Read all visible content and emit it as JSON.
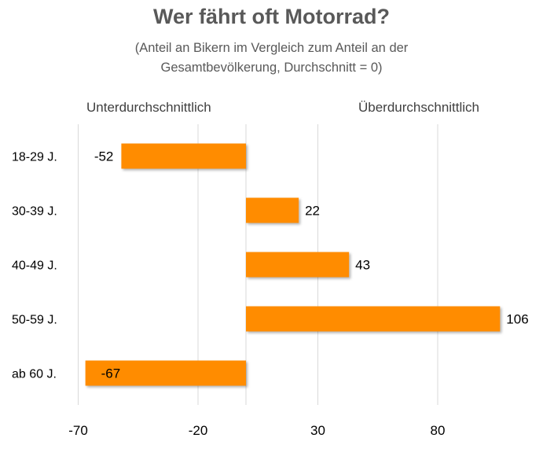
{
  "chart_data": {
    "type": "bar",
    "orientation": "horizontal",
    "title": "Wer fährt oft Motorrad?",
    "subtitle_lines": [
      "(Anteil an Bikern im Vergleich zum Anteil an der",
      "Gesamtbevölkerung, Durchschnitt = 0)"
    ],
    "side_labels": {
      "below": "Unterdurchschnittlich",
      "above": "Überdurchschnittlich"
    },
    "categories": [
      "18-29 J.",
      "30-39 J.",
      "40-49 J.",
      "50-59 J.",
      "ab 60 J."
    ],
    "values": [
      -52,
      22,
      43,
      106,
      -67
    ],
    "value_labels": [
      "-52",
      "22",
      "43",
      "106",
      "-67"
    ],
    "x_ticks": [
      -70,
      -20,
      30,
      80
    ],
    "x_tick_labels": [
      "-70",
      "-20",
      "30",
      "80"
    ],
    "xlim": [
      -70,
      110
    ],
    "grid": "vertical",
    "bar_color": "#FF8C00",
    "grid_color": "#D9D9D9"
  }
}
